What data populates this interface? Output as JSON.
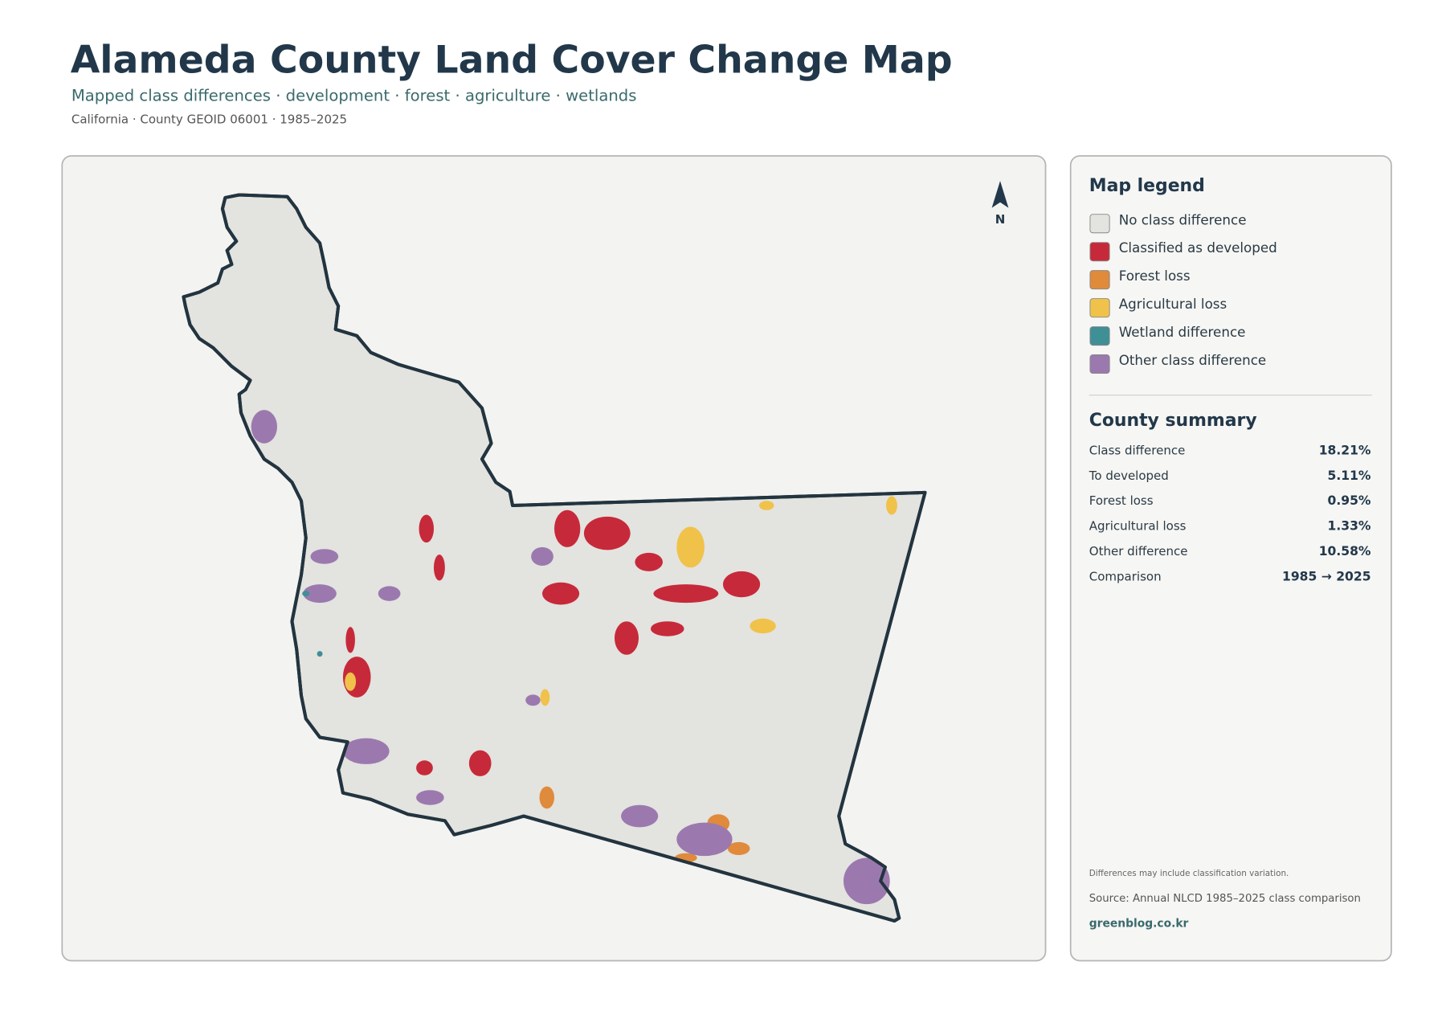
{
  "header": {
    "title": "Alameda County Land Cover Change Map",
    "subtitle": "Mapped class differences · development · forest · agriculture · wetlands",
    "meta": "California · County GEOID 06001 · 1985–2025"
  },
  "map": {
    "north_label": "N"
  },
  "legend": {
    "title": "Map legend",
    "items": [
      {
        "label": "No class difference",
        "color": "#e3e3df"
      },
      {
        "label": "Classified as developed",
        "color": "#c62a3a"
      },
      {
        "label": "Forest loss",
        "color": "#e08a3c"
      },
      {
        "label": "Agricultural loss",
        "color": "#f0c24a"
      },
      {
        "label": "Wetland difference",
        "color": "#3f8f96"
      },
      {
        "label": "Other class difference",
        "color": "#9b79ae"
      }
    ]
  },
  "summary": {
    "title": "County summary",
    "rows": [
      [
        "Class difference",
        "18.21%"
      ],
      [
        "To developed",
        "5.11%"
      ],
      [
        "Forest loss",
        "0.95%"
      ],
      [
        "Agricultural loss",
        "1.33%"
      ],
      [
        "Other difference",
        "10.58%"
      ],
      [
        "Comparison",
        "1985 → 2025"
      ]
    ]
  },
  "footer": {
    "note": "Differences may include classification variation.",
    "source": "Source: Annual NLCD 1985–2025 class comparison",
    "site": "greenblog.co.kr"
  }
}
